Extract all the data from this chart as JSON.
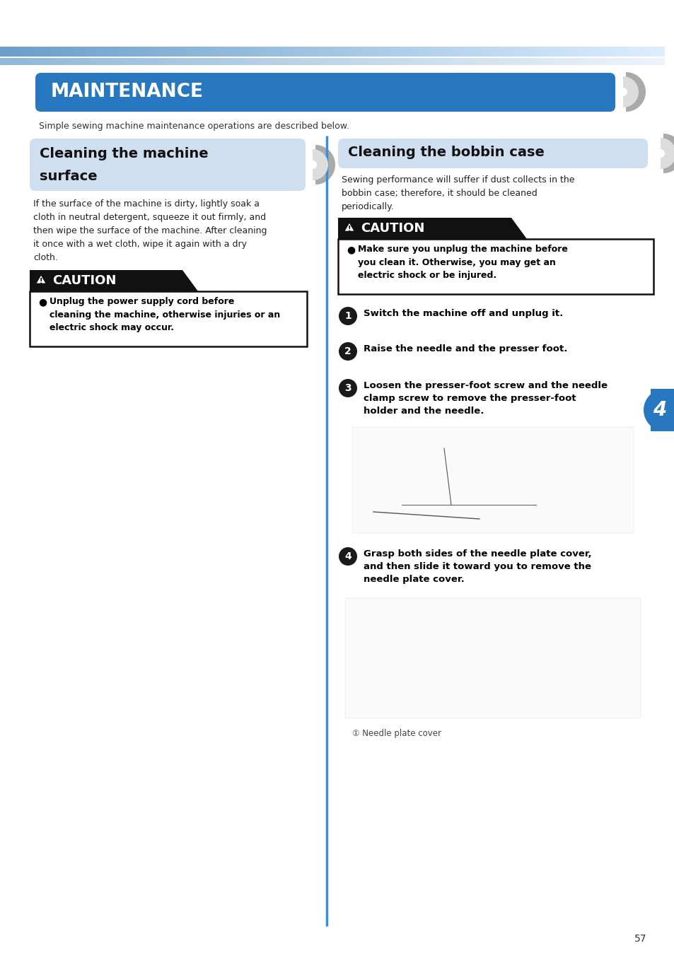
{
  "bg_color": "#ffffff",
  "page_number": "57",
  "main_title": "MAINTENANCE",
  "main_title_bg": "#2878bf",
  "main_title_color": "#ffffff",
  "intro_text": "Simple sewing machine maintenance operations are described below.",
  "left_section_title_l1": "Cleaning the machine",
  "left_section_title_l2": "surface",
  "left_section_bg": "#d0dff0",
  "right_section_title": "Cleaning the bobbin case",
  "right_section_bg": "#d0dff0",
  "section_title_color": "#111111",
  "caution_header_bg": "#111111",
  "caution_box_border": "#111111",
  "left_body_text": "If the surface of the machine is dirty, lightly soak a\ncloth in neutral detergent, squeeze it out firmly, and\nthen wipe the surface of the machine. After cleaning\nit once with a wet cloth, wipe it again with a dry\ncloth.",
  "left_caution_text": "Unplug the power supply cord before\ncleaning the machine, otherwise injuries or an\nelectric shock may occur.",
  "right_intro_text": "Sewing performance will suffer if dust collects in the\nbobbin case; therefore, it should be cleaned\nperiodically.",
  "right_caution_text": "Make sure you unplug the machine before\nyou clean it. Otherwise, you may get an\nelectric shock or be injured.",
  "step1_text": "Switch the machine off and unplug it.",
  "step2_text": "Raise the needle and the presser foot.",
  "step3_text": "Loosen the presser-foot screw and the needle\nclamp screw to remove the presser-foot\nholder and the needle.",
  "step4_text": "Grasp both sides of the needle plate cover,\nand then slide it toward you to remove the\nneedle plate cover.",
  "caption_text": "① Needle plate cover",
  "divider_color": "#3a8fda",
  "tab_color": "#2878bf",
  "tab_text": "4",
  "chevron_dark": "#aaaaaa",
  "chevron_light": "#dddddd",
  "stripe1_left": "#6b9ec8",
  "stripe1_right": "#ddeeff",
  "stripe2_left": "#90b8d8",
  "stripe2_right": "#eef4fa"
}
